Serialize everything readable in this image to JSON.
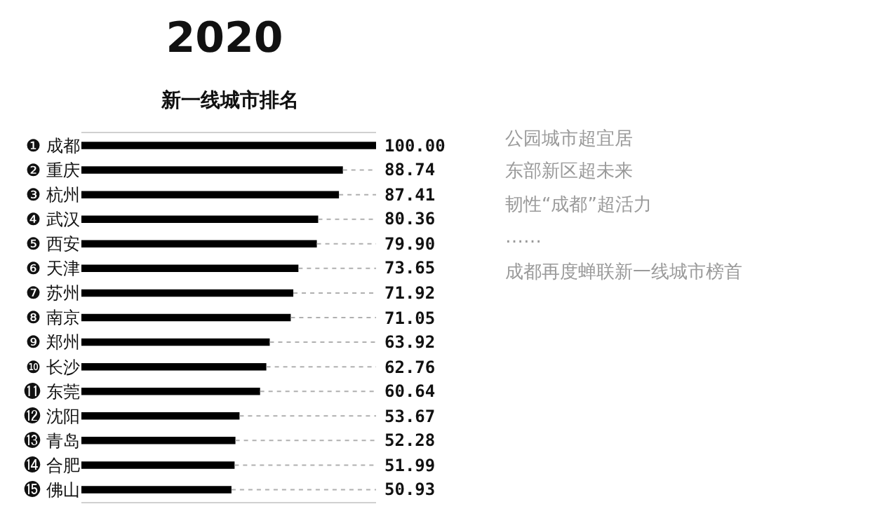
{
  "chart_data": {
    "type": "bar",
    "orientation": "horizontal",
    "title": "2020",
    "subtitle": "新一线城市排名",
    "categories": [
      "❶ 成都",
      "❷ 重庆",
      "❸ 杭州",
      "❹ 武汉",
      "❺ 西安",
      "❻ 天津",
      "❼ 苏州",
      "❽ 南京",
      "❾ 郑州",
      "❿ 长沙",
      "⓫ 东莞",
      "⓬ 沈阳",
      "⓭ 青岛",
      "⓮ 合肥",
      "⓯ 佛山"
    ],
    "values": [
      100.0,
      88.74,
      87.41,
      80.36,
      79.9,
      73.65,
      71.92,
      71.05,
      63.92,
      62.76,
      60.64,
      53.67,
      52.28,
      51.99,
      50.93
    ],
    "value_labels": [
      "100.00",
      "88.74",
      "87.41",
      "80.36",
      "79.90",
      "73.65",
      "71.92",
      "71.05",
      "63.92",
      "62.76",
      "60.64",
      "53.67",
      "52.28",
      "51.99",
      "50.93"
    ],
    "color": "#000000",
    "xlim": [
      0,
      100
    ],
    "tick_labels": "y",
    "grid": false,
    "annotations": [
      "公园城市超宜居",
      "东部新区超未来",
      "韧性“成都”超活力",
      "……",
      "成都再度蝉联新一线城市榜首"
    ]
  }
}
